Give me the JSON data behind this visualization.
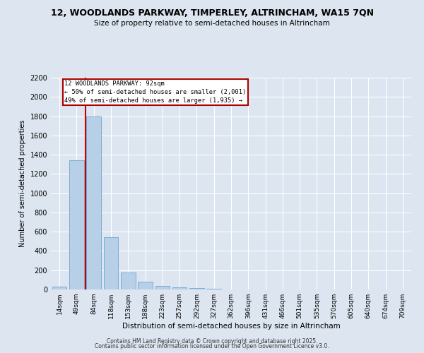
{
  "title": "12, WOODLANDS PARKWAY, TIMPERLEY, ALTRINCHAM, WA15 7QN",
  "subtitle": "Size of property relative to semi-detached houses in Altrincham",
  "xlabel": "Distribution of semi-detached houses by size in Altrincham",
  "ylabel": "Number of semi-detached properties",
  "bar_labels": [
    "14sqm",
    "49sqm",
    "84sqm",
    "118sqm",
    "153sqm",
    "188sqm",
    "223sqm",
    "257sqm",
    "292sqm",
    "327sqm",
    "362sqm",
    "396sqm",
    "431sqm",
    "466sqm",
    "501sqm",
    "535sqm",
    "570sqm",
    "605sqm",
    "640sqm",
    "674sqm",
    "709sqm"
  ],
  "bar_values": [
    30,
    1340,
    1800,
    540,
    175,
    80,
    35,
    25,
    18,
    10,
    0,
    0,
    0,
    0,
    0,
    0,
    0,
    0,
    0,
    0,
    0
  ],
  "bar_color": "#b8cfe8",
  "bar_edgecolor": "#7aadd4",
  "vline_color": "#cc0000",
  "annotation_title": "12 WOODLANDS PARKWAY: 92sqm",
  "annotation_line1": "← 50% of semi-detached houses are smaller (2,001)",
  "annotation_line2": "49% of semi-detached houses are larger (1,935) →",
  "annotation_box_edgecolor": "#aa0000",
  "annotation_bg": "#ffffff",
  "ylim": [
    0,
    2200
  ],
  "yticks": [
    0,
    200,
    400,
    600,
    800,
    1000,
    1200,
    1400,
    1600,
    1800,
    2000,
    2200
  ],
  "background_color": "#dde5f0",
  "footer1": "Contains HM Land Registry data © Crown copyright and database right 2025.",
  "footer2": "Contains public sector information licensed under the Open Government Licence v3.0."
}
